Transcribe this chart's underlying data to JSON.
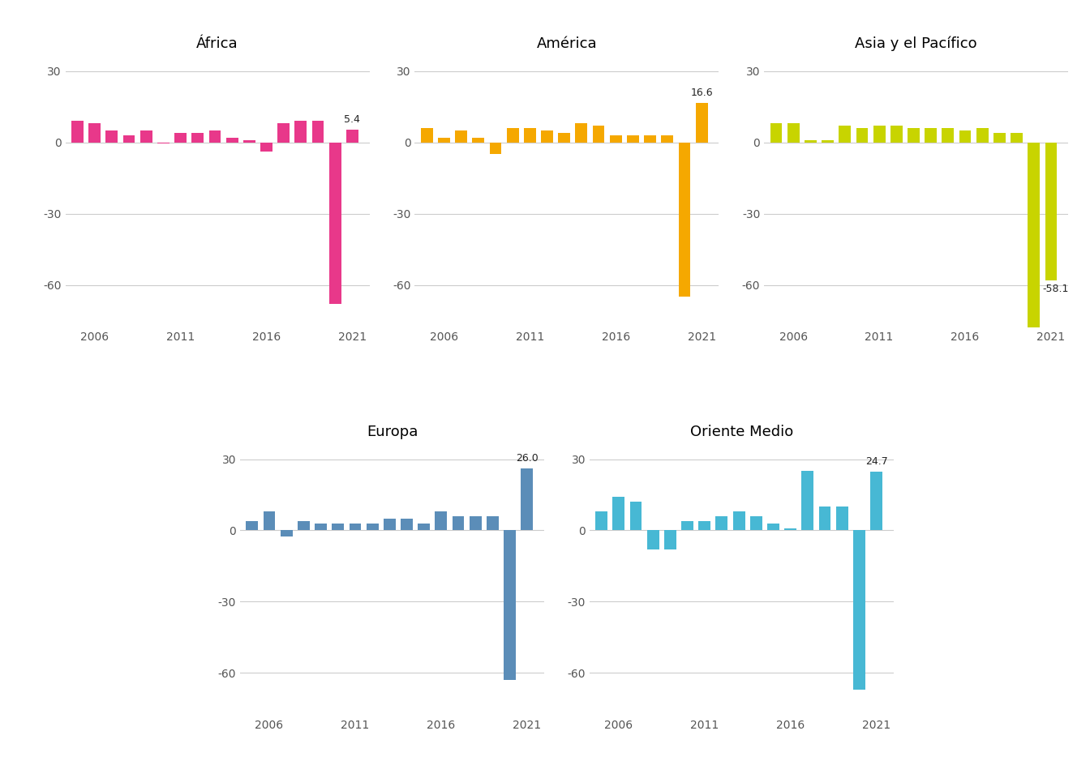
{
  "regions": [
    "África",
    "América",
    "Asia y el Pacífico",
    "Europa",
    "Oriente Medio"
  ],
  "colors": [
    "#E8388A",
    "#F5A800",
    "#C8D400",
    "#5B8DB8",
    "#47B8D4"
  ],
  "data": {
    "África": [
      9.0,
      8.0,
      5.0,
      3.0,
      5.0,
      -0.5,
      4.0,
      4.0,
      5.0,
      2.0,
      1.0,
      -4.0,
      8.0,
      9.0,
      9.0,
      -68.0,
      5.4
    ],
    "América": [
      6.0,
      2.0,
      5.0,
      2.0,
      -5.0,
      6.0,
      6.0,
      5.0,
      4.0,
      8.0,
      7.0,
      3.0,
      3.0,
      3.0,
      3.0,
      -65.0,
      16.6
    ],
    "Asia y el Pacífico": [
      8.0,
      8.0,
      1.0,
      1.0,
      7.0,
      6.0,
      7.0,
      7.0,
      6.0,
      6.0,
      6.0,
      5.0,
      6.0,
      4.0,
      4.0,
      -83.0,
      -58.1
    ],
    "Europa": [
      4.0,
      8.0,
      -2.5,
      4.0,
      3.0,
      3.0,
      3.0,
      3.0,
      5.0,
      5.0,
      3.0,
      8.0,
      6.0,
      6.0,
      6.0,
      -63.0,
      26.0
    ],
    "Oriente Medio": [
      8.0,
      14.0,
      12.0,
      -8.0,
      -8.0,
      4.0,
      4.0,
      6.0,
      8.0,
      6.0,
      3.0,
      1.0,
      25.0,
      10.0,
      10.0,
      -67.0,
      24.7
    ]
  },
  "years": [
    2005,
    2006,
    2007,
    2008,
    2009,
    2010,
    2011,
    2012,
    2013,
    2014,
    2015,
    2016,
    2017,
    2018,
    2019,
    2020,
    2021
  ],
  "annotations": {
    "África": {
      "year_idx": 16,
      "value": 5.4,
      "pos": "above"
    },
    "América": {
      "year_idx": 16,
      "value": 16.6,
      "pos": "above"
    },
    "Asia y el Pacífico": {
      "year_idx": 15,
      "value": -58.1,
      "pos": "below_right"
    },
    "Europa": {
      "year_idx": 16,
      "value": 26.0,
      "pos": "above"
    },
    "Oriente Medio": {
      "year_idx": 16,
      "value": 24.7,
      "pos": "above"
    }
  },
  "xticks": [
    2006,
    2011,
    2016,
    2021
  ],
  "yticks": [
    -60,
    -30,
    0,
    30
  ],
  "ylim": [
    -78,
    37
  ],
  "xlim": [
    2004.3,
    2022.0
  ],
  "bar_width": 0.7,
  "background_color": "#FFFFFF",
  "grid_color": "#CCCCCC",
  "title_fontsize": 13,
  "tick_fontsize": 10,
  "annot_fontsize": 9
}
